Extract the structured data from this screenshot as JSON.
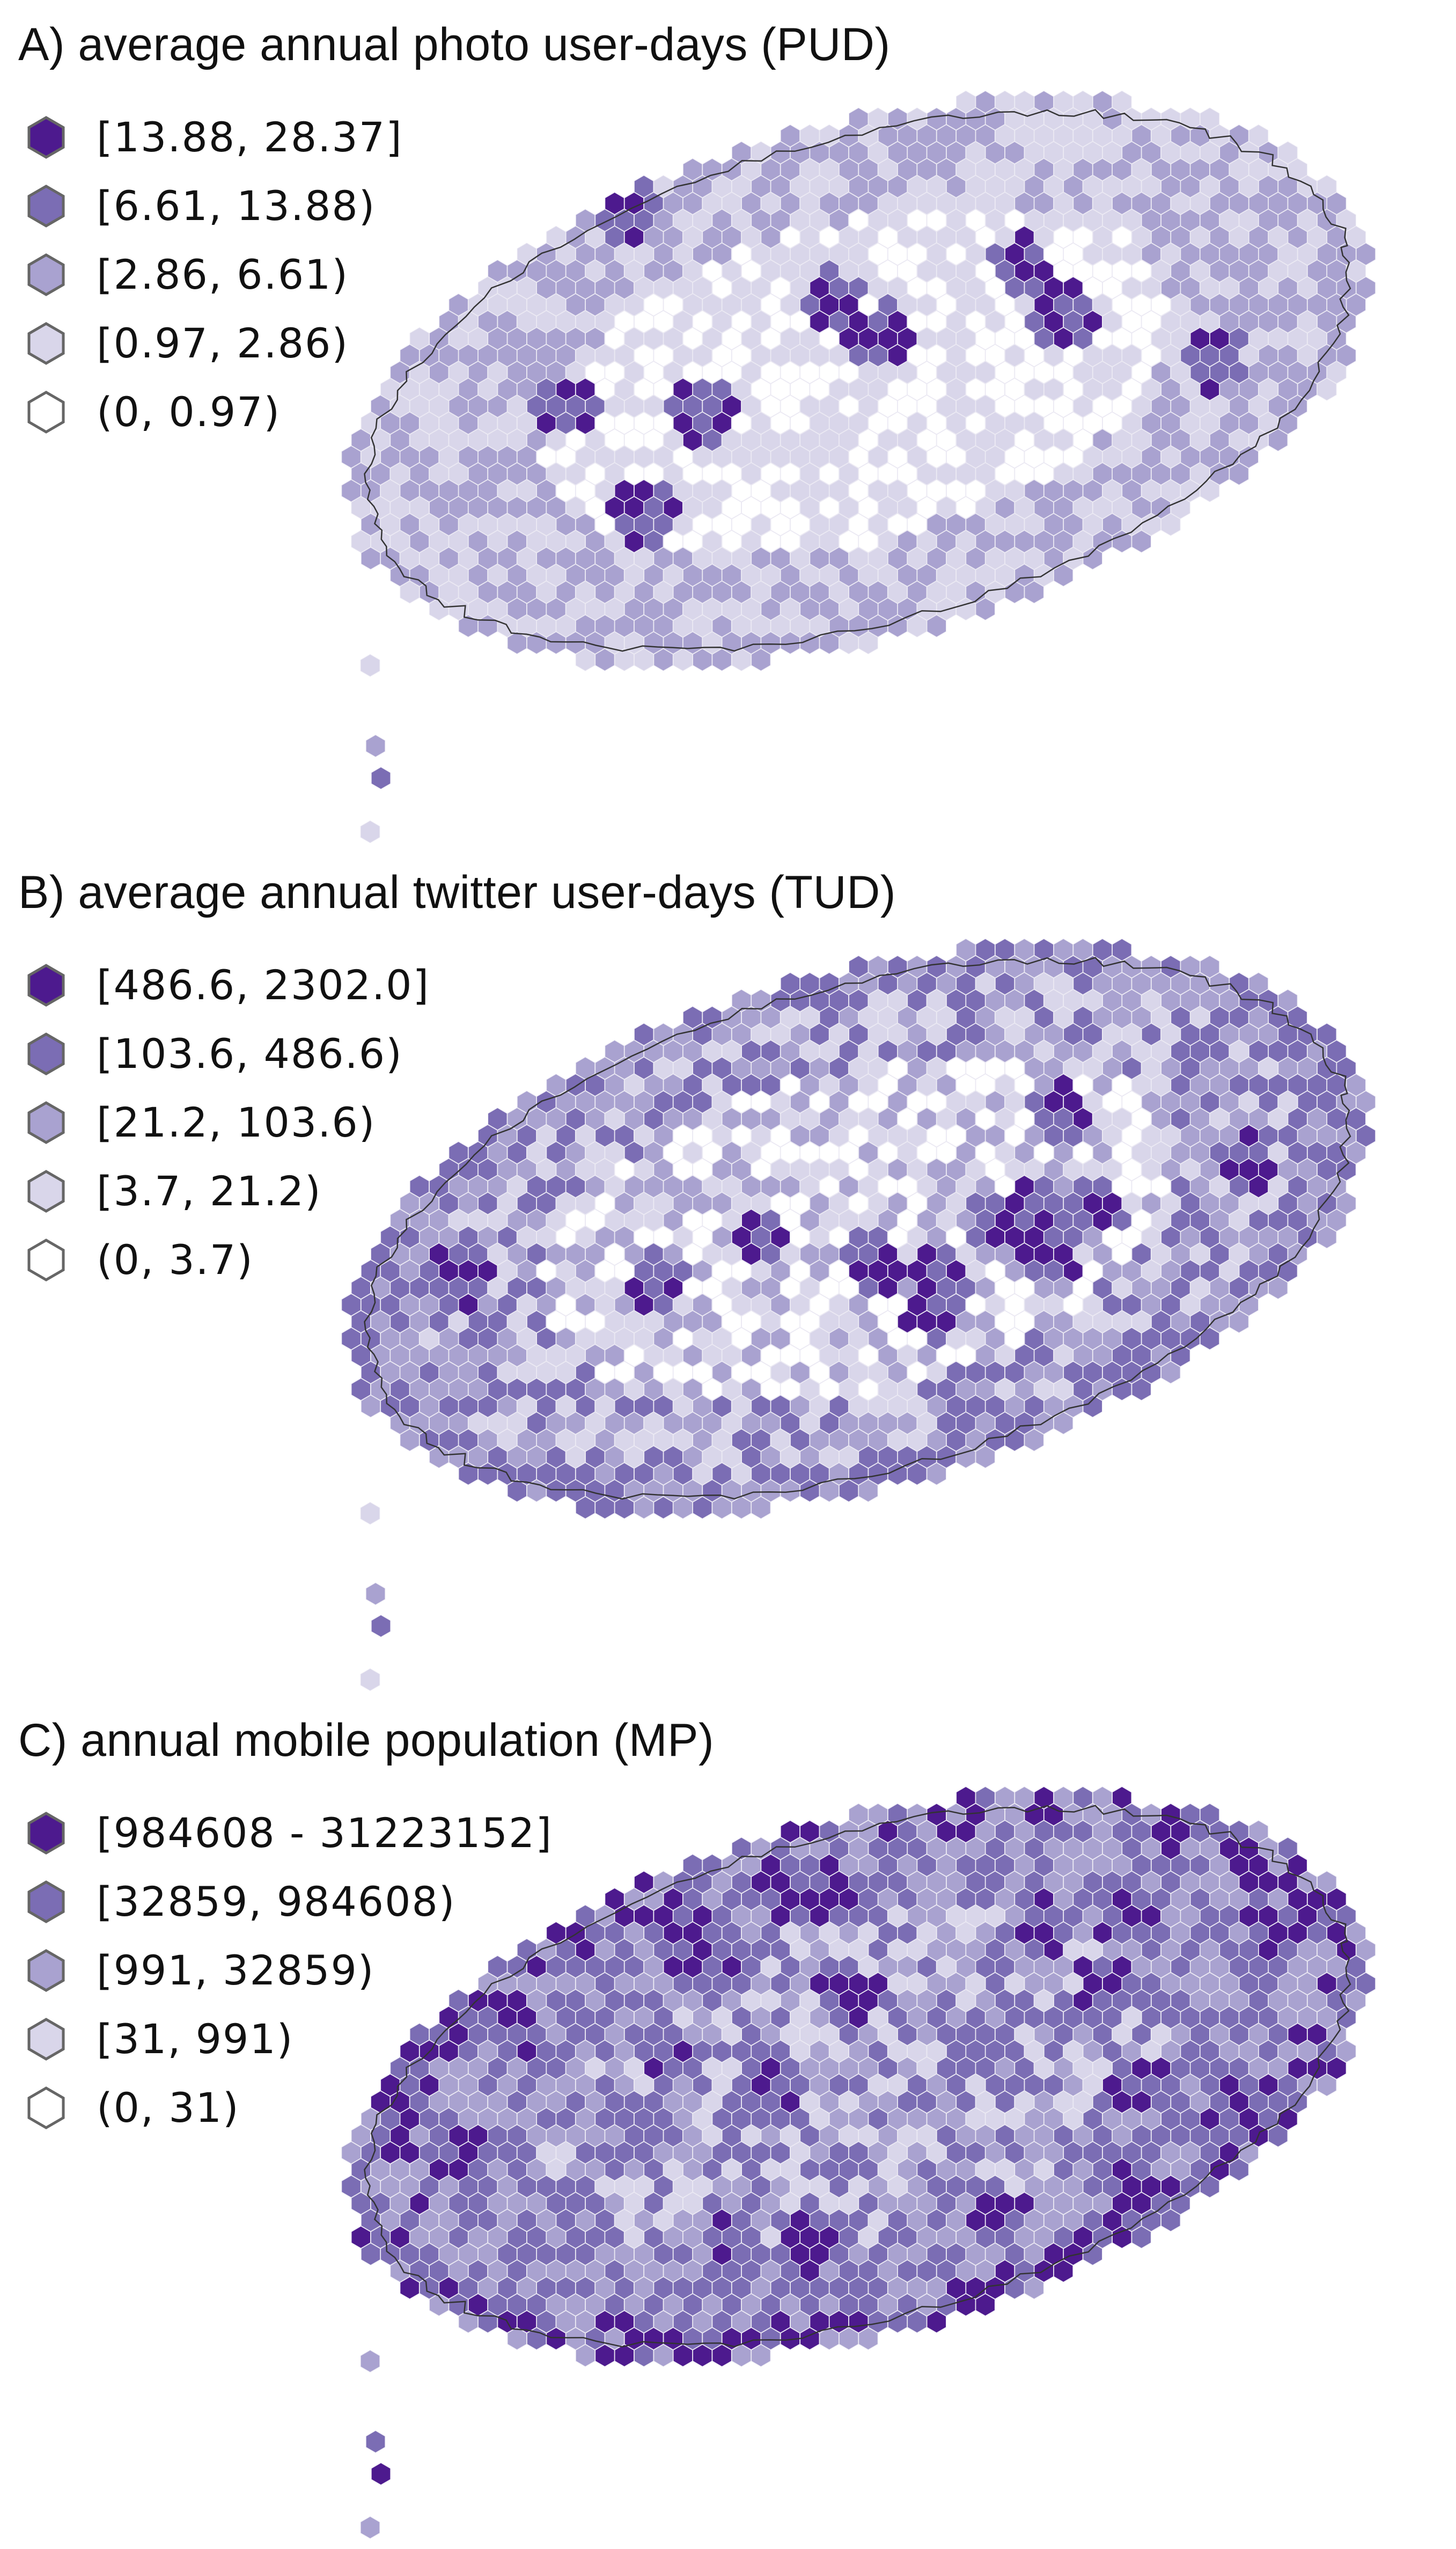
{
  "panels": [
    {
      "title": "A) average annual photo user-days (PUD)",
      "legend": [
        {
          "label": "[13.88, 28.37]",
          "class": 4
        },
        {
          "label": "[6.61, 13.88)",
          "class": 3
        },
        {
          "label": "[2.86, 6.61)",
          "class": 2
        },
        {
          "label": "[0.97, 2.86)",
          "class": 1
        },
        {
          "label": "(0, 0.97)",
          "class": 0
        }
      ],
      "pattern": {
        "base": [
          0,
          1
        ],
        "mid": [
          1,
          2
        ],
        "rim": [
          1,
          2
        ],
        "hotspots": 9,
        "hotRange": [
          3,
          4
        ]
      }
    },
    {
      "title": "B) average annual twitter user-days (TUD)",
      "legend": [
        {
          "label": "[486.6, 2302.0]",
          "class": 4
        },
        {
          "label": "[103.6, 486.6)",
          "class": 3
        },
        {
          "label": "[21.2, 103.6)",
          "class": 2
        },
        {
          "label": "[3.7, 21.2)",
          "class": 1
        },
        {
          "label": "(0, 3.7)",
          "class": 0
        }
      ],
      "pattern": {
        "base": [
          0,
          2
        ],
        "mid": [
          1,
          3
        ],
        "rim": [
          2,
          3
        ],
        "hotspots": 14,
        "hotRange": [
          3,
          4
        ]
      }
    },
    {
      "title": "C) annual mobile population (MP)",
      "legend": [
        {
          "label": "[984608 - 31223152]",
          "class": 4
        },
        {
          "label": "[32859, 984608)",
          "class": 3
        },
        {
          "label": "[991, 32859)",
          "class": 2
        },
        {
          "label": "[31, 991)",
          "class": 1
        },
        {
          "label": "(0, 31)",
          "class": 0
        }
      ],
      "pattern": {
        "base": [
          1,
          3
        ],
        "mid": [
          2,
          3
        ],
        "rim": [
          2,
          4
        ],
        "hotspots": 24,
        "hotRange": [
          3,
          4
        ]
      }
    }
  ],
  "palette": [
    "#ffffff",
    "#d9d6ea",
    "#a9a2d0",
    "#7b6db4",
    "#4d1a8e"
  ],
  "legend_stroke": "#666666",
  "coast_color": "#333333"
}
